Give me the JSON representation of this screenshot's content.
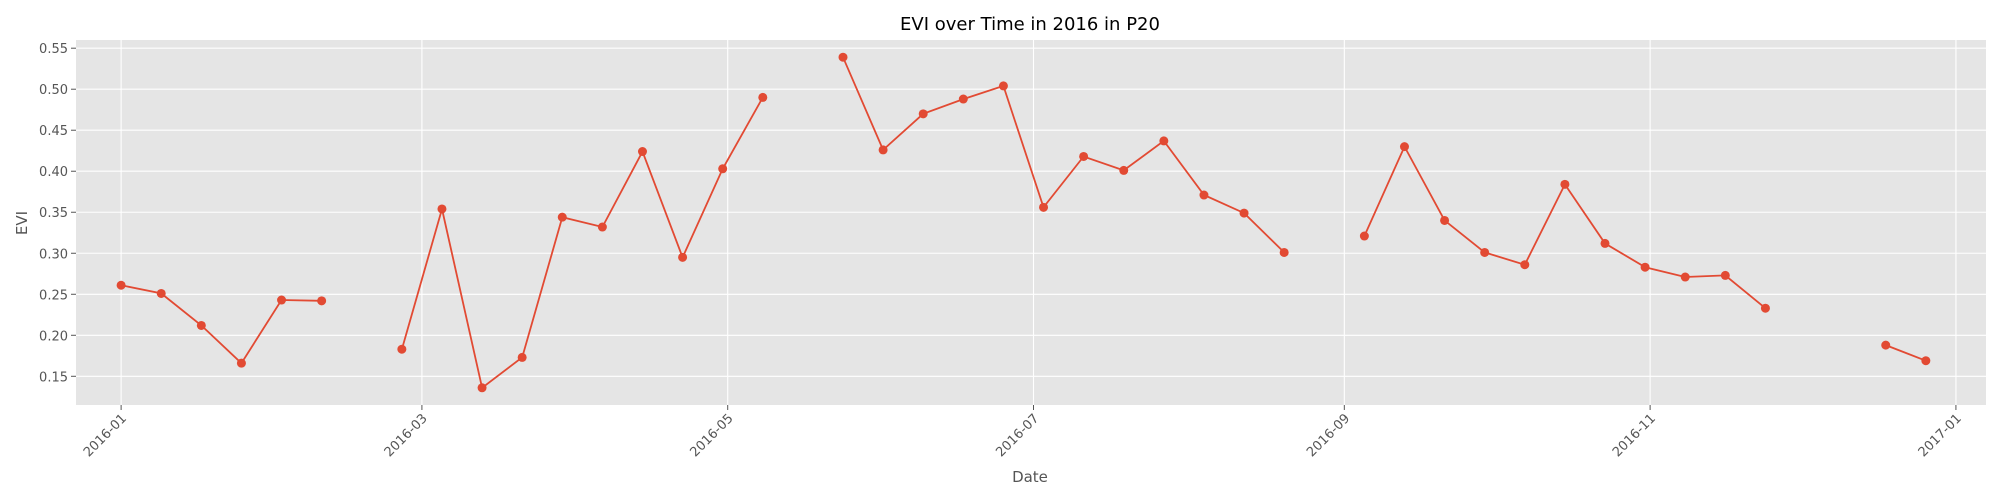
{
  "chart_data": {
    "type": "line",
    "title": "EVI over Time in 2016 in P20",
    "xlabel": "Date",
    "ylabel": "EVI",
    "xlim": [
      "2015-12-23",
      "2017-01-07"
    ],
    "ylim": [
      0.115,
      0.56
    ],
    "x_ticks": [
      "2016-01",
      "2016-03",
      "2016-05",
      "2016-07",
      "2016-09",
      "2016-11",
      "2017-01"
    ],
    "y_ticks": [
      "0.15",
      "0.20",
      "0.25",
      "0.30",
      "0.35",
      "0.40",
      "0.45",
      "0.50",
      "0.55"
    ],
    "grid": true,
    "line_color": "#E24A33",
    "background_color": "#E5E5E5",
    "series": [
      {
        "segments": [
          [
            {
              "x": "2016-01-01",
              "y": 0.261
            },
            {
              "x": "2016-01-09",
              "y": 0.251
            },
            {
              "x": "2016-01-17",
              "y": 0.212
            },
            {
              "x": "2016-01-25",
              "y": 0.166
            },
            {
              "x": "2016-02-02",
              "y": 0.243
            },
            {
              "x": "2016-02-10",
              "y": 0.242
            }
          ],
          [
            {
              "x": "2016-02-26",
              "y": 0.183
            },
            {
              "x": "2016-03-05",
              "y": 0.354
            },
            {
              "x": "2016-03-13",
              "y": 0.136
            },
            {
              "x": "2016-03-21",
              "y": 0.173
            },
            {
              "x": "2016-03-29",
              "y": 0.344
            },
            {
              "x": "2016-04-06",
              "y": 0.332
            },
            {
              "x": "2016-04-14",
              "y": 0.424
            },
            {
              "x": "2016-04-22",
              "y": 0.295
            },
            {
              "x": "2016-04-30",
              "y": 0.403
            },
            {
              "x": "2016-05-08",
              "y": 0.49
            }
          ],
          [
            {
              "x": "2016-05-24",
              "y": 0.539
            },
            {
              "x": "2016-06-01",
              "y": 0.426
            },
            {
              "x": "2016-06-09",
              "y": 0.47
            },
            {
              "x": "2016-06-17",
              "y": 0.488
            },
            {
              "x": "2016-06-25",
              "y": 0.504
            },
            {
              "x": "2016-07-03",
              "y": 0.356
            },
            {
              "x": "2016-07-11",
              "y": 0.418
            },
            {
              "x": "2016-07-19",
              "y": 0.401
            },
            {
              "x": "2016-07-27",
              "y": 0.437
            },
            {
              "x": "2016-08-04",
              "y": 0.371
            },
            {
              "x": "2016-08-12",
              "y": 0.349
            },
            {
              "x": "2016-08-20",
              "y": 0.301
            }
          ],
          [
            {
              "x": "2016-09-05",
              "y": 0.321
            },
            {
              "x": "2016-09-13",
              "y": 0.43
            },
            {
              "x": "2016-09-21",
              "y": 0.34
            },
            {
              "x": "2016-09-29",
              "y": 0.301
            },
            {
              "x": "2016-10-07",
              "y": 0.286
            },
            {
              "x": "2016-10-15",
              "y": 0.384
            },
            {
              "x": "2016-10-23",
              "y": 0.312
            },
            {
              "x": "2016-10-31",
              "y": 0.283
            },
            {
              "x": "2016-11-08",
              "y": 0.271
            },
            {
              "x": "2016-11-16",
              "y": 0.273
            },
            {
              "x": "2016-11-24",
              "y": 0.233
            }
          ],
          [
            {
              "x": "2016-12-18",
              "y": 0.188
            },
            {
              "x": "2016-12-26",
              "y": 0.169
            }
          ]
        ]
      }
    ]
  }
}
